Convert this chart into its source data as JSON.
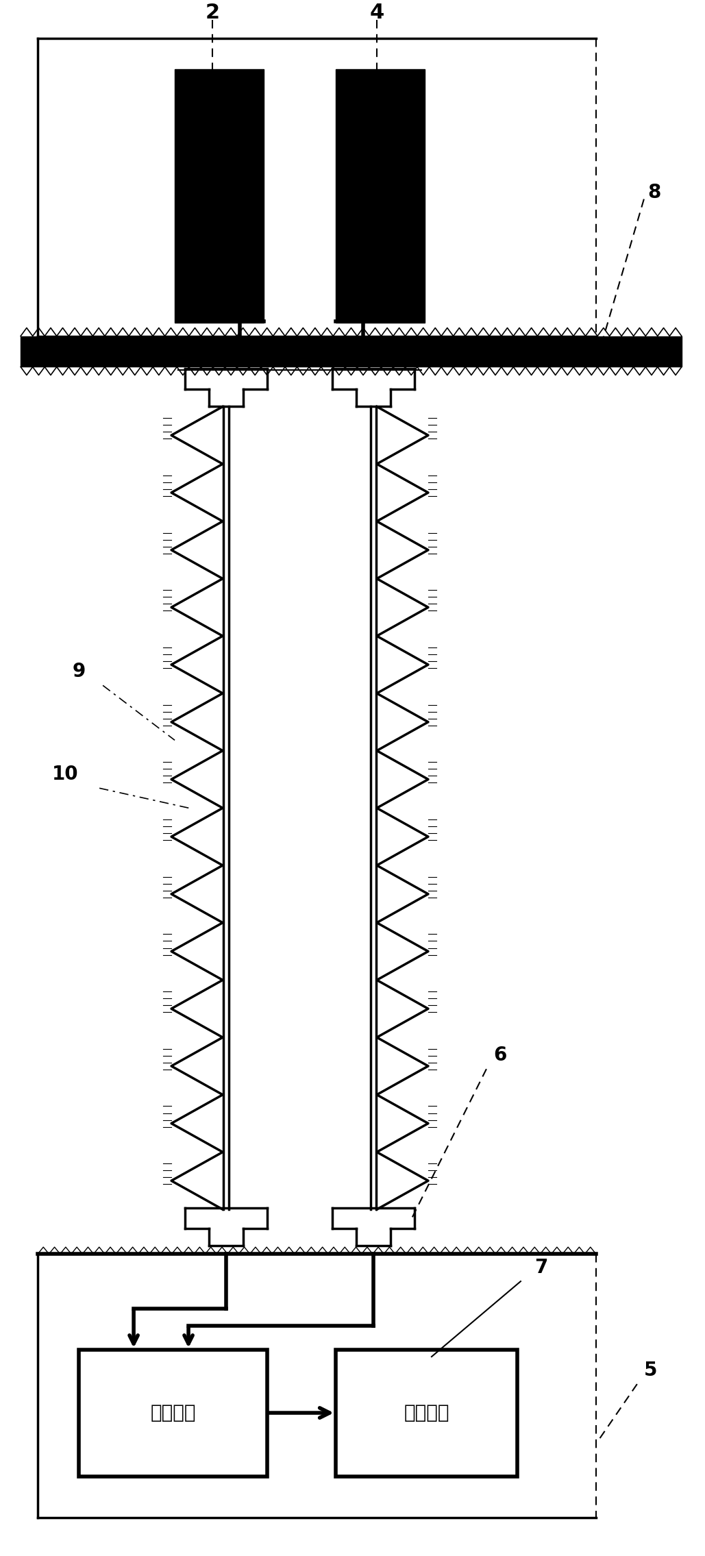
{
  "bg_color": "#ffffff",
  "label_2": "2",
  "label_4": "4",
  "label_8": "8",
  "label_9": "9",
  "label_10": "10",
  "label_5": "5",
  "label_6": "6",
  "label_7": "7",
  "text_remote": "远端模块",
  "text_power": "直流电源",
  "line_color": "#000000",
  "fill_black": "#000000",
  "fill_white": "#ffffff"
}
